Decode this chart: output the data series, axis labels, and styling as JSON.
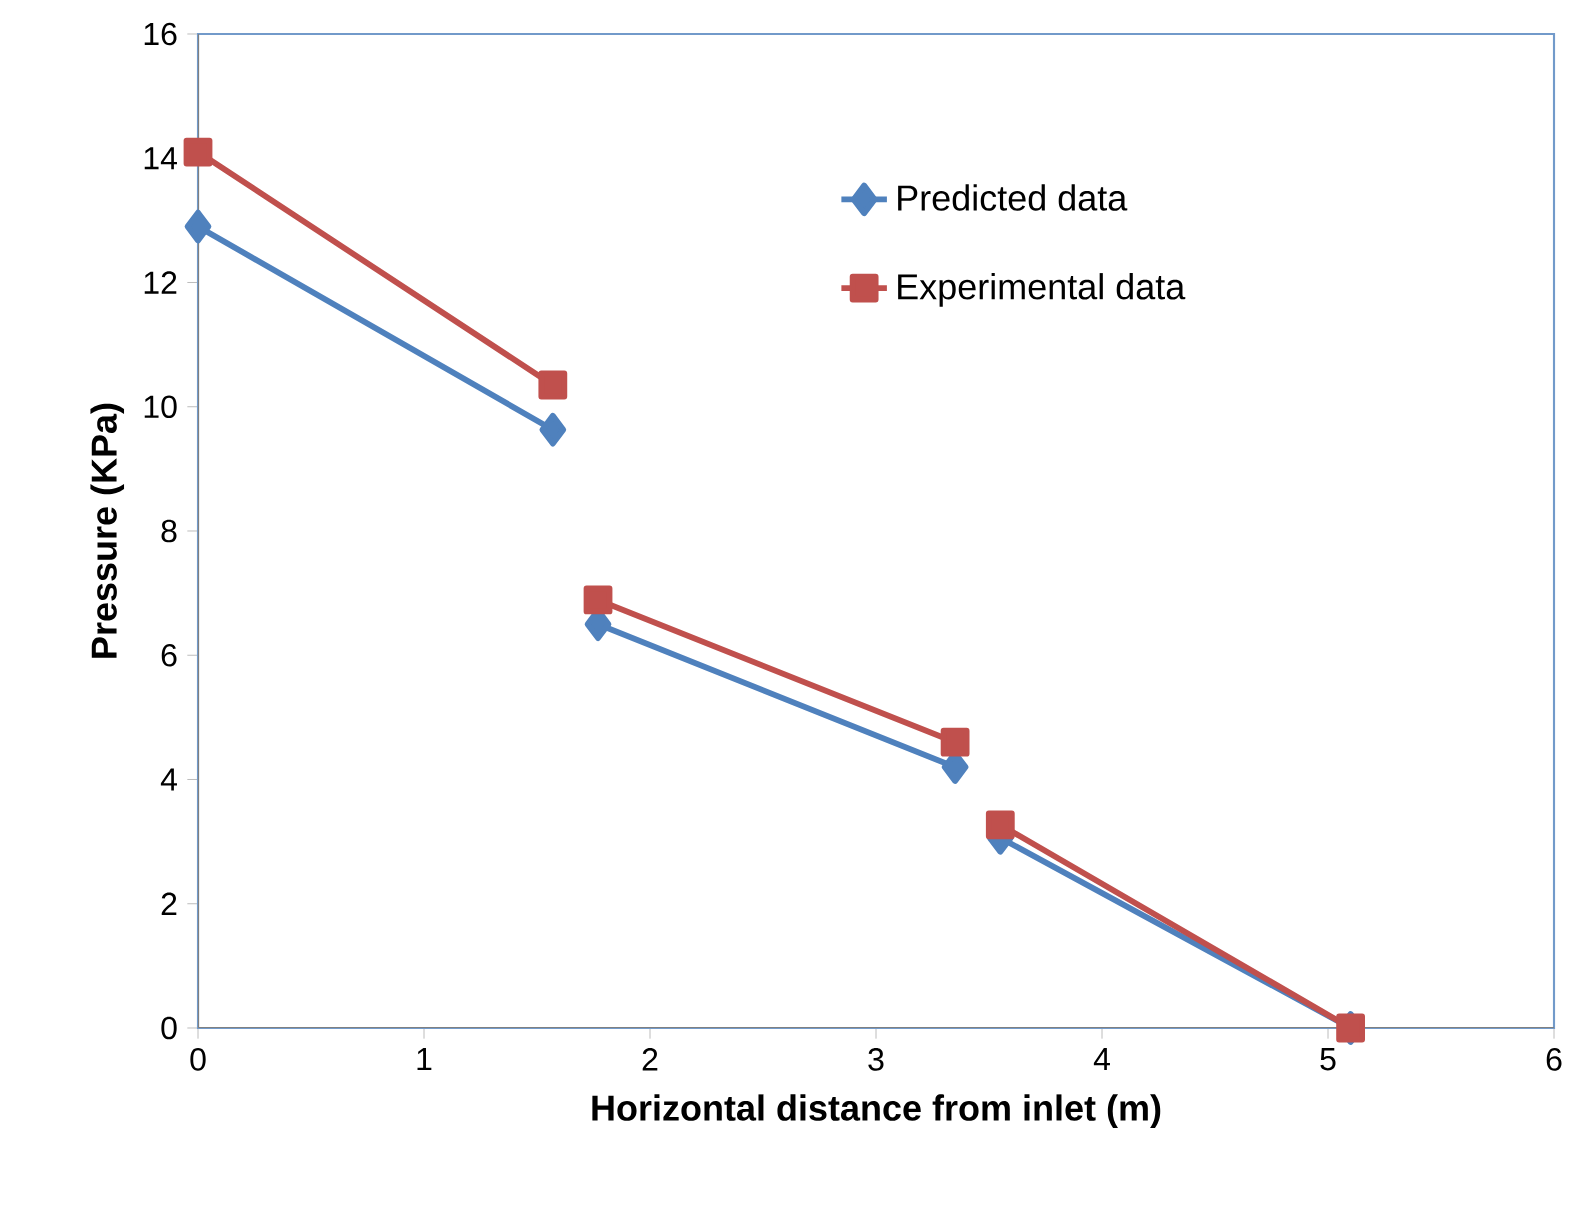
{
  "chart_data": {
    "type": "line",
    "xlabel": "Horizontal distance from inlet (m)",
    "ylabel": "Pressure (KPa)",
    "x": [
      0,
      1.57,
      1.67,
      1.77,
      3.35,
      3.45,
      3.55,
      5.1
    ],
    "series": [
      {
        "name": "Predicted data",
        "color": "#4f81bd",
        "marker": "diamond",
        "values": [
          12.9,
          9.63,
          null,
          6.5,
          4.2,
          null,
          3.06,
          0
        ]
      },
      {
        "name": "Experimental data",
        "color": "#c0504d",
        "marker": "square",
        "values": [
          14.1,
          10.35,
          null,
          6.89,
          4.6,
          null,
          3.27,
          0
        ]
      }
    ],
    "xlim": [
      0,
      6
    ],
    "xticks": [
      0,
      1,
      2,
      3,
      4,
      5,
      6
    ],
    "ylim": [
      0,
      16
    ],
    "yticks": [
      0,
      2,
      4,
      6,
      8,
      10,
      12,
      14,
      16
    ],
    "grid": false,
    "legend": "top right",
    "line_style": "solid"
  }
}
